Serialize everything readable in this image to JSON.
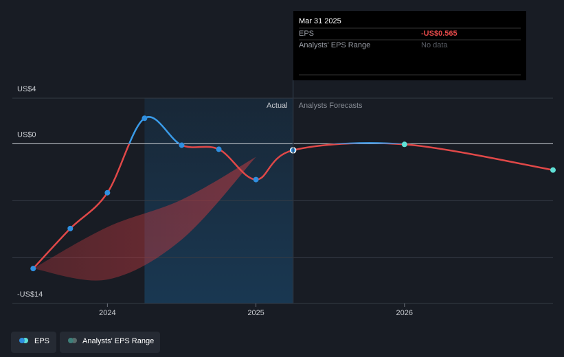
{
  "chart_data": {
    "type": "line",
    "xlim": [
      2023.36,
      2027
    ],
    "xticks": [
      2024,
      2025,
      2026
    ],
    "ylim": [
      -14,
      4
    ],
    "yticks": [
      {
        "value": 4,
        "label": "US$4"
      },
      {
        "value": 0,
        "label": "US$0"
      },
      {
        "value": -14,
        "label": "-US$14"
      }
    ],
    "ygrid": [
      -5,
      -10
    ],
    "series": [
      {
        "name": "EPS",
        "color": "#e04848",
        "positive_color": "#3a9be8",
        "marker_color": "#2f8fe0",
        "forecast_marker_color": "#5fe0d6",
        "x": [
          2023.5,
          2023.75,
          2024.0,
          2024.25,
          2024.5,
          2024.75,
          2025.0,
          2025.25,
          2026.0,
          2027.0
        ],
        "values": [
          -10.94,
          -7.43,
          -4.29,
          2.24,
          -0.12,
          -0.48,
          -3.14,
          -0.565,
          -0.05,
          -2.3
        ]
      }
    ],
    "range": {
      "name": "Analysts' EPS Range",
      "color": "#c0393f",
      "legend_color": "#3e7f7a",
      "x": [
        2023.5,
        2024.0,
        2024.5,
        2025.0
      ],
      "high": [
        -10.94,
        -7.3,
        -4.9,
        -1.15
      ],
      "low": [
        -10.94,
        -11.9,
        -8.4,
        -1.15
      ]
    },
    "highlight_start": 2024.25,
    "forecast_start": 2025.25,
    "actual_label": "Actual",
    "forecast_label": "Analysts Forecasts",
    "tooltip": {
      "date": "Mar 31 2025",
      "rows": [
        {
          "label": "EPS",
          "value": -0.565,
          "value_label": "-US$0.565"
        },
        {
          "label": "Analysts' EPS Range",
          "text": "No data"
        }
      ]
    }
  }
}
